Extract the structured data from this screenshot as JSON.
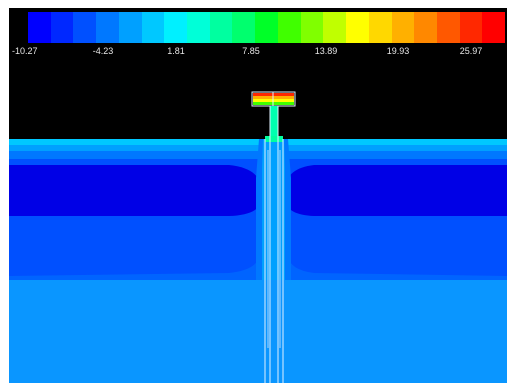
{
  "colorbar": {
    "colors": [
      "#0000ff",
      "#0028ff",
      "#0050ff",
      "#0078ff",
      "#00a0ff",
      "#00c8ff",
      "#00f0ff",
      "#00ffd8",
      "#00ffa0",
      "#00ff6e",
      "#00ff28",
      "#40ff00",
      "#80ff00",
      "#c0ff00",
      "#ffff00",
      "#ffd800",
      "#ffb000",
      "#ff8800",
      "#ff5800",
      "#ff2800",
      "#ff0000"
    ],
    "labels": [
      "-10.27",
      "-4.23",
      "1.81",
      "7.85",
      "13.89",
      "19.93",
      "25.97"
    ]
  },
  "colors": {
    "background": "#000000",
    "soil_dark": "#0000e6",
    "soil_mid": "#0050ff",
    "soil_light": "#0a96ff",
    "soil_surface": "#00c8ff",
    "pile_top_hot": "#ff2800",
    "pile_top_warm": "#ffff00",
    "pile_shaft": "#00ffb0",
    "pile_lines": "#e0f0ff"
  }
}
